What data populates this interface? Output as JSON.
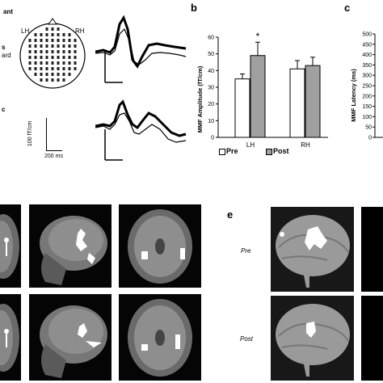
{
  "figure": {
    "panel_labels": [
      "b",
      "c",
      "e"
    ],
    "panel_a": {
      "head_labels": [
        "ant",
        "LH",
        "RH",
        "s",
        "ard"
      ],
      "scale_y": "100 fT/cm",
      "scale_x": "200 ms",
      "extra_label": "c"
    },
    "panel_e": {
      "row_labels": [
        "Pre",
        "Post"
      ]
    },
    "legend": [
      {
        "label": "Pre",
        "color": "#ffffff"
      },
      {
        "label": "Post",
        "color": "#a0a0a0"
      }
    ]
  },
  "chart_data": [
    {
      "type": "bar",
      "categories": [
        "LH",
        "RH"
      ],
      "series": [
        {
          "name": "Pre",
          "values": [
            35,
            41
          ],
          "errors": [
            3,
            5
          ]
        },
        {
          "name": "Post",
          "values": [
            49,
            43
          ],
          "errors": [
            8,
            5
          ]
        }
      ],
      "ylabel": "MMF Amplitude (fT/cm)",
      "ylim": [
        0,
        60
      ],
      "yticks": [
        0,
        10,
        20,
        30,
        40,
        50,
        60
      ],
      "annotation": "*",
      "colors": [
        "#ffffff",
        "#a0a0a0"
      ]
    },
    {
      "type": "bar",
      "ylabel": "MMF Latency (ms)",
      "ylim": [
        0,
        500
      ],
      "yticks": [
        0,
        50,
        100,
        150,
        200,
        250,
        300,
        350,
        400,
        450,
        500
      ]
    }
  ]
}
